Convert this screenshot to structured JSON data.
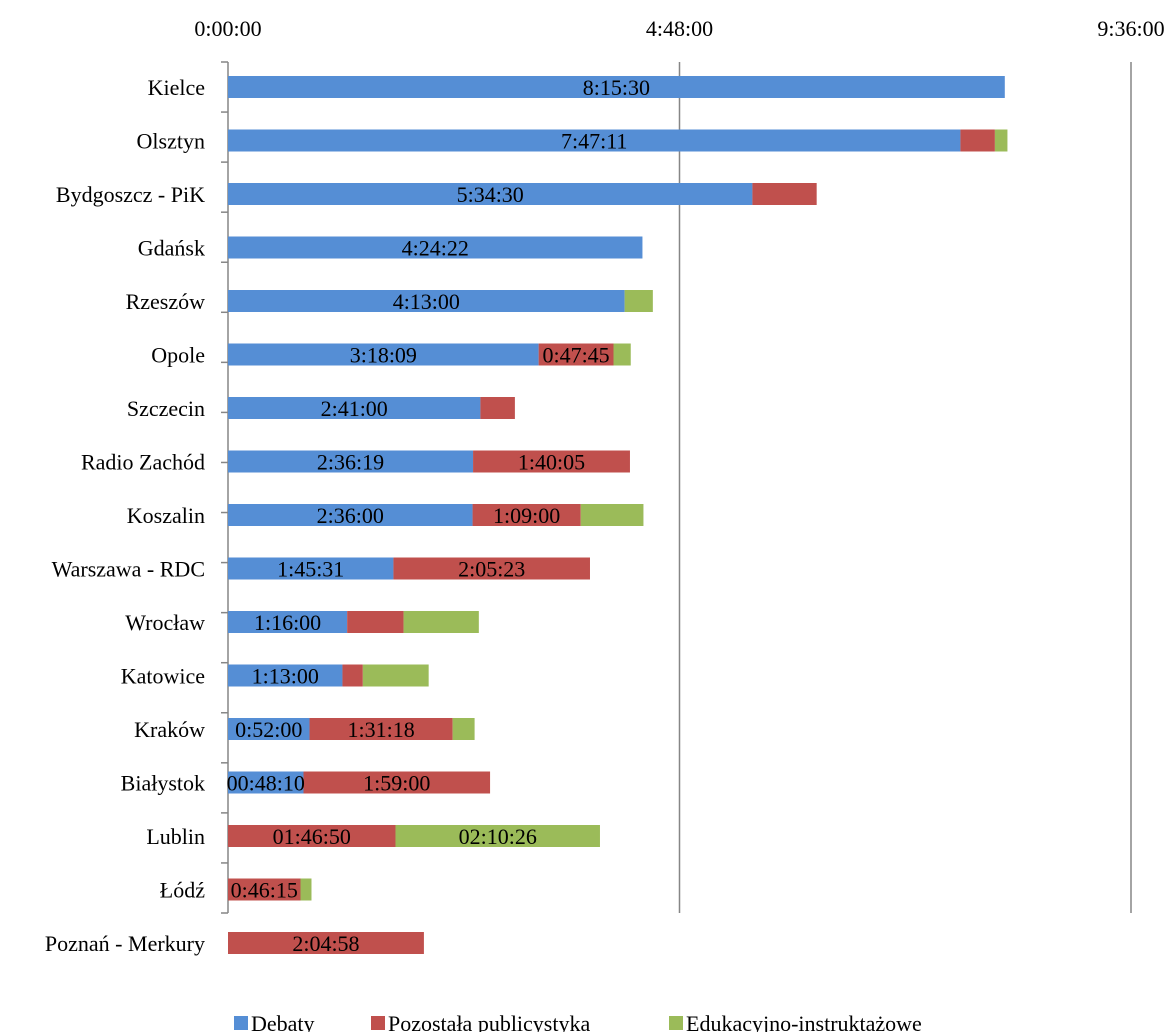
{
  "chart_data": {
    "type": "bar",
    "orientation": "horizontal",
    "stacked": true,
    "value_unit": "seconds",
    "x_ticks": [
      {
        "value": 0,
        "label": "0:00:00"
      },
      {
        "value": 17280,
        "label": "4:48:00"
      },
      {
        "value": 34560,
        "label": "9:36:00"
      }
    ],
    "xlim": [
      0,
      34560
    ],
    "x_axis_position": "top",
    "grid": "vertical major gridlines",
    "legend_position": "bottom",
    "categories": [
      "Kielce",
      "Olsztyn",
      "Bydgoszcz - PiK",
      "Gdańsk",
      "Rzeszów",
      "Opole",
      "Szczecin",
      "Radio Zachód",
      "Koszalin",
      "Warszawa - RDC",
      "Wrocław",
      "Katowice",
      "Kraków",
      "Białystok",
      "Lublin",
      "Łódź",
      "Poznań - Merkury"
    ],
    "series": [
      {
        "name": "Debaty",
        "color": "#558ED5",
        "values": [
          29730,
          28031,
          20070,
          15862,
          15180,
          11889,
          9660,
          9379,
          9360,
          6331,
          4560,
          4380,
          3120,
          2890,
          0,
          0,
          0
        ],
        "labels": [
          "8:15:30",
          "7:47:11",
          "5:34:30",
          "4:24:22",
          "4:13:00",
          "3:18:09",
          "2:41:00",
          "2:36:19",
          "2:36:00",
          "1:45:31",
          "1:16:00",
          "1:13:00",
          "0:52:00",
          "00:48:10",
          "",
          "",
          ""
        ]
      },
      {
        "name": "Pozostała publicystyka",
        "color": "#C0504D",
        "values": [
          0,
          1320,
          2460,
          0,
          0,
          2865,
          1320,
          6005,
          4140,
          7523,
          2160,
          780,
          5478,
          7140,
          6410,
          2775,
          7498
        ],
        "labels": [
          "",
          "",
          "",
          "",
          "",
          "0:47:45",
          "",
          "1:40:05",
          "1:09:00",
          "2:05:23",
          "",
          "",
          "1:31:18",
          "1:59:00",
          "01:46:50",
          "0:46:15",
          "2:04:58"
        ]
      },
      {
        "name": "Edukacyjno-instruktażowe",
        "color": "#9BBB59",
        "values": [
          0,
          480,
          0,
          0,
          1080,
          660,
          0,
          0,
          2400,
          0,
          2880,
          2520,
          840,
          0,
          7826,
          420,
          0
        ],
        "labels": [
          "",
          "",
          "",
          "",
          "",
          "",
          "",
          "",
          "",
          "",
          "",
          "",
          "",
          "",
          "02:10:26",
          "",
          ""
        ]
      }
    ]
  }
}
